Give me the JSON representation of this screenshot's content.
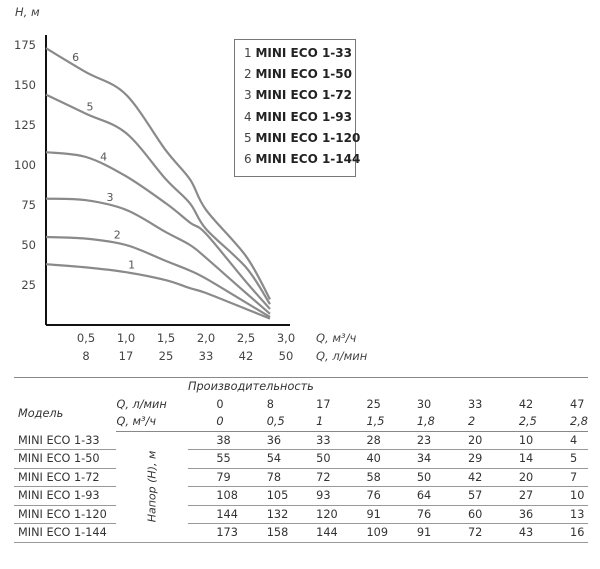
{
  "chart_data": {
    "type": "line",
    "y_axis_label": "H, м",
    "x_axis_label_primary": "Q, м³/ч",
    "x_axis_label_secondary": "Q, л/мин",
    "y_ticks": [
      "25",
      "50",
      "75",
      "100",
      "125",
      "150",
      "175"
    ],
    "x_ticks_primary": [
      "0,5",
      "1,0",
      "1,5",
      "2,0",
      "2,5",
      "3,0"
    ],
    "x_ticks_secondary": [
      "8",
      "17",
      "25",
      "33",
      "42",
      "50"
    ],
    "xlim": [
      0,
      3.0
    ],
    "ylim": [
      0,
      175
    ],
    "x": [
      0,
      0.5,
      1.0,
      1.5,
      1.8,
      2.0,
      2.5,
      2.8
    ],
    "series": [
      {
        "id": "1",
        "name": "MINI ECO 1-33",
        "values": [
          38,
          36,
          33,
          28,
          23,
          20,
          10,
          4
        ]
      },
      {
        "id": "2",
        "name": "MINI ECO 1-50",
        "values": [
          55,
          54,
          50,
          40,
          34,
          29,
          14,
          5
        ]
      },
      {
        "id": "3",
        "name": "MINI ECO 1-72",
        "values": [
          79,
          78,
          72,
          58,
          50,
          42,
          20,
          7
        ]
      },
      {
        "id": "4",
        "name": "MINI ECO 1-93",
        "values": [
          108,
          105,
          93,
          76,
          64,
          57,
          27,
          10
        ]
      },
      {
        "id": "5",
        "name": "MINI ECO 1-120",
        "values": [
          144,
          132,
          120,
          91,
          76,
          60,
          36,
          13
        ]
      },
      {
        "id": "6",
        "name": "MINI ECO 1-144",
        "values": [
          173,
          158,
          144,
          109,
          91,
          72,
          43,
          16
        ]
      }
    ],
    "line_color": "#8a8a8a"
  },
  "legend": [
    {
      "num": "1",
      "name": "MINI ECO 1-33"
    },
    {
      "num": "2",
      "name": "MINI ECO 1-50"
    },
    {
      "num": "3",
      "name": "MINI ECO 1-72"
    },
    {
      "num": "4",
      "name": "MINI ECO 1-93"
    },
    {
      "num": "5",
      "name": "MINI ECO 1-120"
    },
    {
      "num": "6",
      "name": "MINI ECO 1-144"
    }
  ],
  "table": {
    "productivity_header": "Производительность",
    "model_header": "Модель",
    "unit_lmin": "Q, л/мин",
    "unit_m3h": "Q, м³/ч",
    "head_label": "Напор (Н), м",
    "flow_lmin": [
      "0",
      "8",
      "17",
      "25",
      "30",
      "33",
      "42",
      "47"
    ],
    "flow_m3h": [
      "0",
      "0,5",
      "1",
      "1,5",
      "1,8",
      "2",
      "2,5",
      "2,8"
    ],
    "rows": [
      {
        "model": "MINI ECO 1-33",
        "values": [
          "38",
          "36",
          "33",
          "28",
          "23",
          "20",
          "10",
          "4"
        ]
      },
      {
        "model": "MINI ECO 1-50",
        "values": [
          "55",
          "54",
          "50",
          "40",
          "34",
          "29",
          "14",
          "5"
        ]
      },
      {
        "model": "MINI ECO 1-72",
        "values": [
          "79",
          "78",
          "72",
          "58",
          "50",
          "42",
          "20",
          "7"
        ]
      },
      {
        "model": "MINI ECO 1-93",
        "values": [
          "108",
          "105",
          "93",
          "76",
          "64",
          "57",
          "27",
          "10"
        ]
      },
      {
        "model": "MINI ECO 1-120",
        "values": [
          "144",
          "132",
          "120",
          "91",
          "76",
          "60",
          "36",
          "13"
        ]
      },
      {
        "model": "MINI ECO 1-144",
        "values": [
          "173",
          "158",
          "144",
          "109",
          "91",
          "72",
          "43",
          "16"
        ]
      }
    ]
  }
}
